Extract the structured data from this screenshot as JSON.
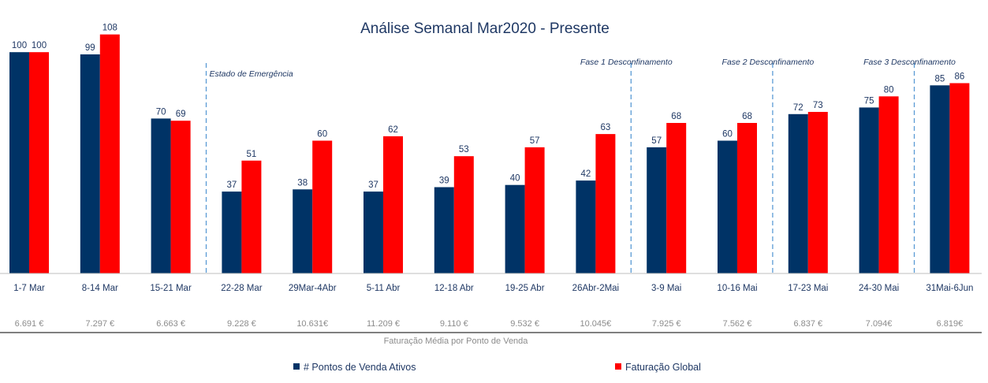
{
  "chart_data": {
    "type": "bar",
    "title": "Análise Semanal Mar2020 - Presente",
    "categories": [
      "1-7 Mar",
      "8-14 Mar",
      "15-21 Mar",
      "22-28 Mar",
      "29Mar-4Abr",
      "5-11 Abr",
      "12-18 Abr",
      "19-25 Abr",
      "26Abr-2Mai",
      "3-9 Mai",
      "10-16 Mai",
      "17-23 Mai",
      "24-30 Mai",
      "31Mai-6Jun"
    ],
    "series": [
      {
        "name": "# Pontos de Venda Ativos",
        "color": "#003366",
        "values": [
          100,
          99,
          70,
          37,
          38,
          37,
          39,
          40,
          42,
          57,
          60,
          72,
          75,
          85
        ]
      },
      {
        "name": "Faturação Global",
        "color": "#ff0000",
        "values": [
          100,
          108,
          69,
          51,
          60,
          62,
          53,
          57,
          63,
          68,
          68,
          73,
          80,
          86
        ]
      }
    ],
    "ylim": [
      0,
      120
    ],
    "grid": false,
    "legend": "bottom",
    "average_label": "Faturação Média por Ponto de Venda",
    "averages": [
      "6.691 €",
      "7.297 €",
      "6.663 €",
      "9.228 €",
      "10.631€",
      "11.209 €",
      "9.110 €",
      "9.532 €",
      "10.045€",
      "7.925 €",
      "7.562 €",
      "6.837 €",
      "7.094€",
      "6.819€"
    ],
    "phases": [
      {
        "label": "Estado de Emergência",
        "after_index": 2
      },
      {
        "label": "Fase 1 Desconfinamento",
        "after_index": 8
      },
      {
        "label": "Fase 2 Desconfinamento",
        "after_index": 10
      },
      {
        "label": "Fase 3 Desconfinamento",
        "after_index": 12
      }
    ]
  }
}
